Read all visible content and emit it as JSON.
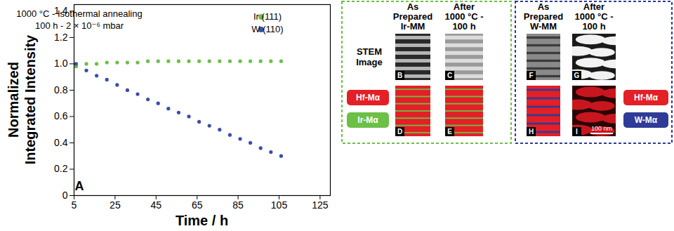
{
  "chart_data": {
    "type": "scatter",
    "marker": "circle",
    "annotations": [
      "1000 °C - Isothermal annealing",
      "100 h - 2 × 10⁻⁶ mbar"
    ],
    "panel_letter": "A",
    "x_label": "Time / h",
    "y_label": "Normalized Integrated Intensity",
    "x": [
      6,
      11,
      16,
      21,
      26,
      31,
      36,
      41,
      46,
      51,
      56,
      61,
      66,
      71,
      76,
      81,
      86,
      91,
      96,
      101,
      106
    ],
    "series": [
      {
        "name": "Ir (111)",
        "color": "#6cbf47",
        "values": [
          0.98,
          1.0,
          1.0,
          1.01,
          1.01,
          1.01,
          1.01,
          1.02,
          1.02,
          1.02,
          1.02,
          1.02,
          1.02,
          1.02,
          1.02,
          1.02,
          1.02,
          1.02,
          1.02,
          1.02,
          1.02
        ]
      },
      {
        "name": "W (110)",
        "color": "#3b4fa8",
        "values": [
          1.0,
          0.95,
          0.91,
          0.88,
          0.84,
          0.8,
          0.77,
          0.73,
          0.7,
          0.66,
          0.63,
          0.6,
          0.56,
          0.53,
          0.5,
          0.46,
          0.43,
          0.4,
          0.36,
          0.33,
          0.3
        ]
      }
    ],
    "xlim": [
      5,
      130
    ],
    "xticks": [
      5,
      25,
      45,
      65,
      85,
      105,
      125
    ],
    "ylim": [
      0,
      1.45
    ],
    "yticks": [
      0,
      0.2,
      0.4,
      0.6,
      0.8,
      {
        "value": 1,
        "label": "1.0"
      },
      1.2,
      1.4
    ],
    "grid": false,
    "legend": "top-right"
  },
  "panels": {
    "row_label": "STEM Image",
    "scale_bar": "100 nm",
    "groups": [
      {
        "columns": [
          {
            "title": "As Prepared Ir-MM",
            "image": "B",
            "map": "D"
          },
          {
            "title": "After 1000 °C - 100 h",
            "image": "C",
            "map": "E"
          }
        ],
        "maps": [
          {
            "text": "Hf-Mα",
            "color": "#e41f26"
          },
          {
            "text": "Ir-Mα",
            "color": "#6cbf47"
          }
        ]
      },
      {
        "columns": [
          {
            "title": "As Prepared W-MM",
            "image": "F",
            "map": "H"
          },
          {
            "title": "After 1000 °C - 100 h",
            "image": "G",
            "map": "I"
          }
        ],
        "maps": [
          {
            "text": "Hf-Mα",
            "color": "#e41f26"
          },
          {
            "text": "W-Mα",
            "color": "#2e3b97"
          }
        ]
      }
    ]
  }
}
